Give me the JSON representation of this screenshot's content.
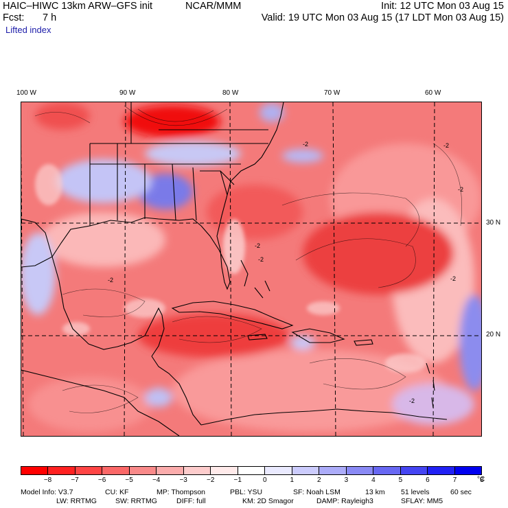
{
  "header": {
    "title": "HAIC–HIWC 13km ARW–GFS init",
    "source": "NCAR/MMM",
    "init": "Init: 12 UTC Mon 03 Aug 15",
    "fcst_label": "Fcst:",
    "fcst_value": "7 h",
    "valid": "Valid: 19 UTC Mon 03 Aug 15 (17 LDT Mon 03 Aug 15)",
    "field": "Lifted index"
  },
  "map": {
    "lon_labels": [
      "100 W",
      "90 W",
      "80 W",
      "70 W",
      "60 W"
    ],
    "lat_labels": [
      "30 N",
      "20 N"
    ],
    "contour_labels": [
      "-2",
      "-2",
      "-2",
      "-2",
      "-2",
      "-2",
      "-2",
      "-2"
    ],
    "colors": {
      "ocean_base": "#f47474",
      "deep_red": "#f01010",
      "light_red": "#fbb0b0",
      "pale": "#fdd8d8",
      "light_blue": "#c8c8f8",
      "mid_blue": "#9a9af0",
      "coast": "#000000"
    }
  },
  "colorbar": {
    "colors": [
      "#ff0000",
      "#ff2121",
      "#ff4545",
      "#fb6868",
      "#f98a8a",
      "#fbacac",
      "#fdcccc",
      "#ffeaea",
      "#ffffff",
      "#eaeaff",
      "#ccccfd",
      "#acacf9",
      "#8a8af5",
      "#6868f3",
      "#4545f3",
      "#2121f5",
      "#0000f0"
    ],
    "labels": [
      "−8",
      "−7",
      "−6",
      "−5",
      "−4",
      "−3",
      "−2",
      "−1",
      "0",
      "1",
      "2",
      "3",
      "4",
      "5",
      "6",
      "7",
      "8"
    ],
    "unit": "°C"
  },
  "model_info": {
    "line1": [
      {
        "key": "model",
        "text": "Model Info: V3.7"
      },
      {
        "key": "cu",
        "text": "CU: KF"
      },
      {
        "key": "mp",
        "text": "MP: Thompson"
      },
      {
        "key": "pbl",
        "text": "PBL: YSU"
      },
      {
        "key": "sf",
        "text": "SF: Noah LSM"
      },
      {
        "key": "res",
        "text": "13 km"
      },
      {
        "key": "levels",
        "text": "51 levels"
      },
      {
        "key": "dt",
        "text": "60 sec"
      }
    ],
    "line2": [
      {
        "key": "lw",
        "text": "LW: RRTMG"
      },
      {
        "key": "sw",
        "text": "SW: RRTMG"
      },
      {
        "key": "diff",
        "text": "DIFF: full"
      },
      {
        "key": "km",
        "text": "KM: 2D Smagor"
      },
      {
        "key": "damp",
        "text": "DAMP: Rayleigh3"
      },
      {
        "key": "sflay",
        "text": "SFLAY: MM5"
      }
    ]
  }
}
